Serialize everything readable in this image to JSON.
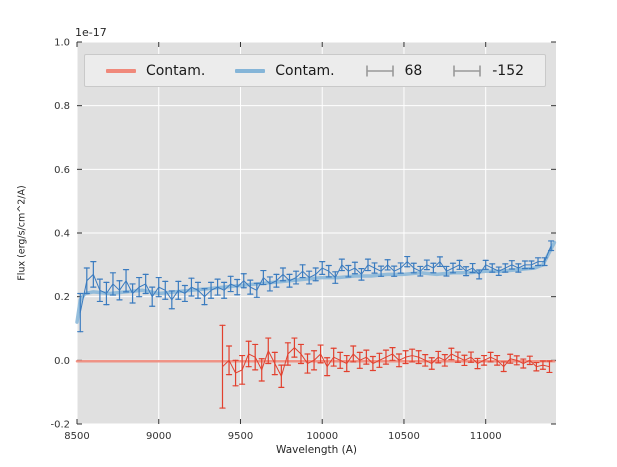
{
  "figure": {
    "y_offset_label": "1e-17",
    "xlabel": "Wavelength (A)",
    "ylabel": "Flux (erg/s/cm^2/A)"
  },
  "legend": {
    "position": "upper-inside-expand",
    "items": [
      {
        "label": "Contam.",
        "type": "line",
        "color": "#f0897b"
      },
      {
        "label": "Contam.",
        "type": "line",
        "color": "#85b5d8"
      },
      {
        "label": "68",
        "type": "errorbar",
        "color": "#e2402e"
      },
      {
        "label": "-152",
        "type": "errorbar",
        "color": "#3a7bbf"
      }
    ]
  },
  "chart_data": {
    "type": "line",
    "title": "",
    "xlabel": "Wavelength (A)",
    "ylabel": "Flux (erg/s/cm^2/A)",
    "y_offset_label": "1e-17",
    "xlim": [
      8500,
      11430
    ],
    "ylim": [
      -0.2,
      1.0
    ],
    "xticks": [
      8500,
      9000,
      9500,
      10000,
      10500,
      11000
    ],
    "yticks": [
      -0.2,
      0.0,
      0.2,
      0.4,
      0.6,
      0.8,
      1.0
    ],
    "grid": true,
    "plot_bg": "#e0e0e0",
    "grid_color": "#ffffff",
    "tick_color": "#333333",
    "series": [
      {
        "name": "Contam.",
        "style": "line",
        "color": "#85b5d8",
        "linewidth": 3.5,
        "alpha": 0.85,
        "x": [
          8500,
          8520,
          8550,
          8600,
          8700,
          8800,
          8900,
          9000,
          9100,
          9200,
          9300,
          9400,
          9500,
          9600,
          9700,
          9800,
          9900,
          10000,
          10100,
          10200,
          10300,
          10400,
          10500,
          10600,
          10700,
          10800,
          10900,
          11000,
          11100,
          11200,
          11300,
          11350,
          11390,
          11420
        ],
        "y": [
          0.12,
          0.19,
          0.21,
          0.215,
          0.21,
          0.215,
          0.22,
          0.21,
          0.215,
          0.22,
          0.225,
          0.23,
          0.235,
          0.24,
          0.245,
          0.25,
          0.255,
          0.26,
          0.26,
          0.265,
          0.265,
          0.27,
          0.27,
          0.275,
          0.27,
          0.275,
          0.275,
          0.28,
          0.28,
          0.285,
          0.29,
          0.3,
          0.34,
          0.37
        ]
      },
      {
        "name": "Contam.",
        "style": "line",
        "color": "#f0897b",
        "linewidth": 2.5,
        "alpha": 0.9,
        "x": [
          8500,
          11420
        ],
        "y": [
          -0.003,
          -0.003
        ]
      },
      {
        "name": "-152",
        "style": "errorbar",
        "color": "#3a7bbf",
        "linewidth": 1,
        "alpha": 1,
        "x": [
          8520,
          8560,
          8600,
          8640,
          8680,
          8720,
          8760,
          8800,
          8840,
          8880,
          8920,
          8960,
          9000,
          9040,
          9080,
          9120,
          9160,
          9200,
          9240,
          9280,
          9320,
          9360,
          9400,
          9440,
          9480,
          9520,
          9560,
          9600,
          9640,
          9680,
          9720,
          9760,
          9800,
          9840,
          9880,
          9920,
          9960,
          10000,
          10040,
          10080,
          10120,
          10160,
          10200,
          10240,
          10280,
          10320,
          10360,
          10400,
          10440,
          10480,
          10520,
          10560,
          10600,
          10640,
          10680,
          10720,
          10760,
          10800,
          10840,
          10880,
          10920,
          10960,
          11000,
          11040,
          11080,
          11120,
          11160,
          11200,
          11240,
          11280,
          11320,
          11360,
          11400
        ],
        "y": [
          0.15,
          0.25,
          0.27,
          0.22,
          0.21,
          0.24,
          0.22,
          0.25,
          0.21,
          0.23,
          0.24,
          0.2,
          0.23,
          0.22,
          0.19,
          0.22,
          0.21,
          0.23,
          0.22,
          0.2,
          0.22,
          0.23,
          0.22,
          0.24,
          0.23,
          0.25,
          0.23,
          0.22,
          0.26,
          0.24,
          0.25,
          0.27,
          0.25,
          0.26,
          0.28,
          0.26,
          0.27,
          0.29,
          0.28,
          0.26,
          0.3,
          0.28,
          0.29,
          0.27,
          0.3,
          0.29,
          0.28,
          0.3,
          0.28,
          0.29,
          0.31,
          0.29,
          0.28,
          0.3,
          0.29,
          0.31,
          0.28,
          0.29,
          0.3,
          0.28,
          0.29,
          0.27,
          0.3,
          0.29,
          0.28,
          0.29,
          0.3,
          0.29,
          0.3,
          0.3,
          0.31,
          0.31,
          0.36
        ],
        "yerr": [
          0.06,
          0.04,
          0.04,
          0.035,
          0.035,
          0.035,
          0.03,
          0.035,
          0.03,
          0.03,
          0.03,
          0.03,
          0.03,
          0.028,
          0.028,
          0.028,
          0.025,
          0.028,
          0.025,
          0.025,
          0.025,
          0.025,
          0.025,
          0.024,
          0.024,
          0.022,
          0.022,
          0.022,
          0.022,
          0.022,
          0.02,
          0.02,
          0.02,
          0.02,
          0.02,
          0.02,
          0.02,
          0.02,
          0.018,
          0.018,
          0.018,
          0.018,
          0.018,
          0.018,
          0.018,
          0.016,
          0.016,
          0.016,
          0.016,
          0.016,
          0.016,
          0.015,
          0.015,
          0.015,
          0.015,
          0.015,
          0.015,
          0.015,
          0.014,
          0.014,
          0.014,
          0.014,
          0.014,
          0.013,
          0.013,
          0.013,
          0.013,
          0.013,
          0.012,
          0.012,
          0.012,
          0.012,
          0.015
        ]
      },
      {
        "name": "68",
        "style": "errorbar",
        "color": "#e2402e",
        "linewidth": 1,
        "alpha": 1,
        "x": [
          9390,
          9430,
          9470,
          9510,
          9550,
          9590,
          9630,
          9670,
          9710,
          9750,
          9790,
          9830,
          9870,
          9910,
          9950,
          9990,
          10030,
          10070,
          10110,
          10150,
          10190,
          10230,
          10270,
          10310,
          10350,
          10390,
          10430,
          10470,
          10510,
          10550,
          10590,
          10630,
          10670,
          10710,
          10750,
          10790,
          10830,
          10870,
          10910,
          10950,
          10990,
          11030,
          11070,
          11110,
          11150,
          11190,
          11230,
          11270,
          11310,
          11350,
          11390
        ],
        "y": [
          -0.02,
          0.0,
          -0.04,
          -0.03,
          0.02,
          0.01,
          -0.03,
          0.03,
          -0.01,
          -0.05,
          0.02,
          0.04,
          0.02,
          -0.01,
          0.0,
          0.02,
          -0.02,
          0.01,
          0.0,
          -0.01,
          0.02,
          0.0,
          0.01,
          -0.01,
          0.0,
          0.01,
          0.02,
          0.0,
          0.01,
          0.015,
          0.01,
          0.0,
          -0.01,
          0.01,
          0.0,
          0.02,
          0.01,
          0.0,
          0.01,
          -0.01,
          0.0,
          0.01,
          0.0,
          -0.02,
          0.005,
          0.0,
          -0.01,
          0.0,
          -0.02,
          -0.015,
          -0.02
        ],
        "yerr": [
          0.13,
          0.045,
          0.04,
          0.045,
          0.04,
          0.04,
          0.035,
          0.04,
          0.035,
          0.035,
          0.035,
          0.03,
          0.03,
          0.03,
          0.03,
          0.028,
          0.028,
          0.028,
          0.025,
          0.025,
          0.025,
          0.025,
          0.022,
          0.022,
          0.022,
          0.022,
          0.02,
          0.02,
          0.02,
          0.02,
          0.02,
          0.018,
          0.018,
          0.018,
          0.018,
          0.018,
          0.016,
          0.016,
          0.016,
          0.016,
          0.015,
          0.015,
          0.015,
          0.015,
          0.014,
          0.014,
          0.014,
          0.013,
          0.013,
          0.013,
          0.018
        ]
      }
    ]
  }
}
